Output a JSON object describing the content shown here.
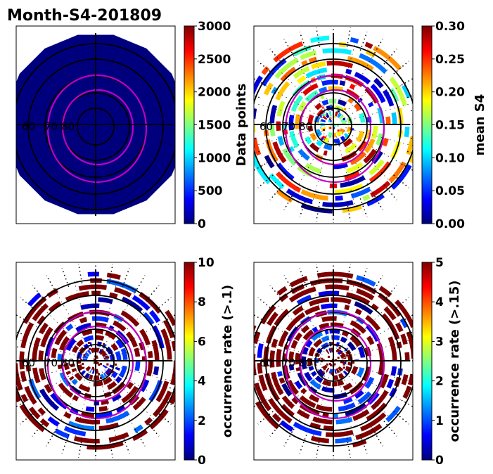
{
  "figure_title": "Month-S4-201809",
  "colormap": [
    "#00007f",
    "#0000ff",
    "#007fff",
    "#00ffff",
    "#7fff7f",
    "#ffff00",
    "#ff7f00",
    "#ff0000",
    "#7f0000"
  ],
  "chart_data": [
    {
      "type": "heatmap",
      "projection": "polar",
      "panel": "top-left",
      "colorbar_label": "Data points",
      "clim": [
        0,
        3000
      ],
      "colorbar_ticks": [
        "0",
        "500",
        "1000",
        "1500",
        "2000",
        "2500",
        "3000"
      ],
      "polar_ring_labels": [
        "60",
        "70",
        "80"
      ],
      "fill_level": 0.0
    },
    {
      "type": "heatmap",
      "projection": "polar",
      "panel": "top-right",
      "colorbar_label": "mean S4",
      "clim": [
        0.0,
        0.3
      ],
      "colorbar_ticks": [
        "0.00",
        "0.05",
        "0.10",
        "0.15",
        "0.20",
        "0.25",
        "0.30"
      ],
      "polar_ring_labels": [
        "60",
        "70",
        "80"
      ],
      "fill_level": null
    },
    {
      "type": "heatmap",
      "projection": "polar",
      "panel": "bottom-left",
      "colorbar_label": "occurrence rate (>.1)",
      "clim": [
        0,
        10
      ],
      "colorbar_ticks": [
        "0",
        "2",
        "4",
        "6",
        "8",
        "10"
      ],
      "polar_ring_labels": [
        "60",
        "70",
        "80"
      ],
      "fill_level": null
    },
    {
      "type": "heatmap",
      "projection": "polar",
      "panel": "bottom-right",
      "colorbar_label": "occurrence rate (>.15)",
      "clim": [
        0,
        5
      ],
      "colorbar_ticks": [
        "0",
        "1",
        "2",
        "3",
        "4",
        "5"
      ],
      "polar_ring_labels": [
        "60",
        "70",
        "80"
      ],
      "fill_level": null
    }
  ]
}
